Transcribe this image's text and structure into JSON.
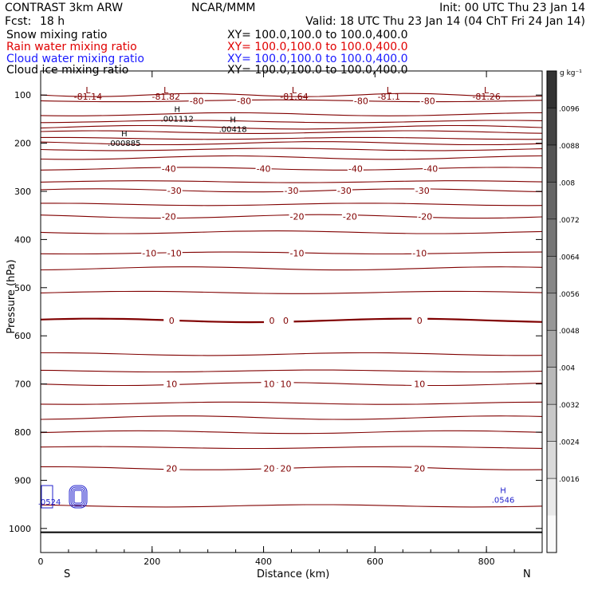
{
  "header": {
    "title": "CONTRAST  3km ARW",
    "center": "NCAR/MMM",
    "init": "Init: 00 UTC Thu 23 Jan 14",
    "fcst_label": "Fcst:",
    "fcst_value": "18 h",
    "valid": "Valid: 18 UTC Thu 23 Jan 14 (04 ChT Fri 24 Jan 14)"
  },
  "fields": [
    {
      "name": "Snow mixing ratio",
      "xy": "XY=  100.0,100.0  to  100.0,400.0",
      "color": "#000000"
    },
    {
      "name": "Rain water mixing ratio",
      "xy": "XY=  100.0,100.0  to  100.0,400.0",
      "color": "#e00000"
    },
    {
      "name": "Cloud water mixing ratio",
      "xy": "XY=  100.0,100.0  to  100.0,400.0",
      "color": "#1a1aff"
    },
    {
      "name": "Cloud ice mixing ratio",
      "xy": "XY=  100.0,100.0  to  100.0,400.0",
      "color": "#000000"
    }
  ],
  "colors": {
    "temperature_contour": "#800000",
    "cloud_water": "#2222cc",
    "rain": "#cc0000",
    "frame": "#000000"
  },
  "chart_data": {
    "type": "contour",
    "xlabel": "Distance (km)",
    "ylabel": "Pressure (hPa)",
    "xlim": [
      0,
      900
    ],
    "ylim": [
      1050,
      50
    ],
    "x_ticks": [
      0,
      200,
      400,
      600,
      800
    ],
    "y_ticks": [
      100,
      200,
      300,
      400,
      500,
      600,
      700,
      800,
      900,
      1000
    ],
    "x_endpoint_labels": {
      "left": "S",
      "right": "N"
    },
    "temperature_contours": [
      {
        "p": 112,
        "label": "-80",
        "label_x": [
          280,
          365,
          575,
          695
        ]
      },
      {
        "p": 140
      },
      {
        "p": 155
      },
      {
        "p": 167
      },
      {
        "p": 177
      },
      {
        "p": 190
      },
      {
        "p": 200
      },
      {
        "p": 213
      },
      {
        "p": 230
      },
      {
        "p": 253,
        "label": "-40",
        "label_x": [
          230,
          400,
          565,
          700
        ]
      },
      {
        "p": 280
      },
      {
        "p": 298,
        "label": "-30",
        "label_x": [
          240,
          450,
          545,
          685
        ]
      },
      {
        "p": 327
      },
      {
        "p": 352,
        "label": "-20",
        "label_x": [
          230,
          460,
          555,
          690
        ]
      },
      {
        "p": 385
      },
      {
        "p": 428,
        "label": "-10",
        "label_x": [
          195,
          240,
          460,
          680
        ]
      },
      {
        "p": 460
      },
      {
        "p": 510
      },
      {
        "p": 568,
        "label": "0",
        "label_x": [
          235,
          415,
          440,
          680
        ],
        "bold": true
      },
      {
        "p": 638
      },
      {
        "p": 673
      },
      {
        "p": 700,
        "label": "10",
        "label_x": [
          235,
          410,
          440,
          680
        ]
      },
      {
        "p": 740
      },
      {
        "p": 770
      },
      {
        "p": 800
      },
      {
        "p": 832
      },
      {
        "p": 875,
        "label": "20",
        "label_x": [
          235,
          410,
          440,
          680
        ]
      },
      {
        "p": 953
      }
    ],
    "surface_pressure_hPa": 1008,
    "lows": [
      {
        "x": 85,
        "label": "-81.14"
      },
      {
        "x": 225,
        "label": "-81.82"
      },
      {
        "x": 455,
        "label": "-81.64"
      },
      {
        "x": 625,
        "label": "-81.1"
      },
      {
        "x": 800,
        "label": "-81.26"
      }
    ],
    "highs": [
      {
        "x": 245,
        "p": 145,
        "value": ".001112"
      },
      {
        "x": 345,
        "p": 167,
        "value": ".00418"
      },
      {
        "x": 150,
        "p": 196,
        "value": ".000885"
      },
      {
        "x": 830,
        "p": 937,
        "value": ".0546",
        "color": "cloud_water"
      }
    ],
    "cloud_water_blob_value": ".0524",
    "colorbar": {
      "unit": "g kg⁻¹",
      "ticks": [
        ".0096",
        ".0088",
        ".008",
        ".0072",
        ".0064",
        ".0056",
        ".0048",
        ".004",
        ".0032",
        ".0024",
        ".0016"
      ],
      "gray_top": "#333333",
      "gray_bottom": "#fafafa",
      "levels": 13
    }
  }
}
